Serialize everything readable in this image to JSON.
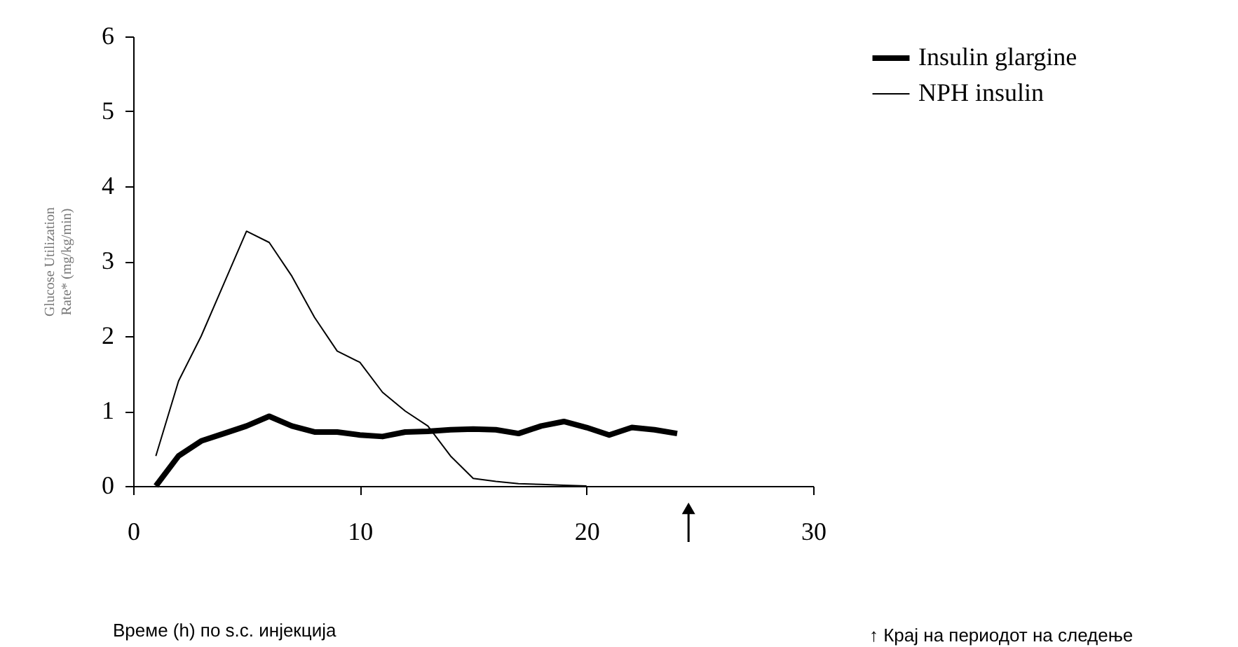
{
  "chart_data": {
    "type": "line",
    "xlabel": "Време (h) по s.c. инјекција",
    "ylabel": "Glucose Utilization\nRate* (mg/kg/min)",
    "xlim": [
      0,
      30
    ],
    "xticks": [
      0,
      10,
      20,
      30
    ],
    "ylim": [
      0,
      6
    ],
    "yticks": [
      0,
      1,
      2,
      3,
      4,
      5,
      6
    ],
    "grid": false,
    "legend": "right",
    "line_style": "solid",
    "marker": "none",
    "annotations": [
      "↑ Крај на периодот на следење"
    ],
    "series": [
      {
        "name": "Insulin glargine",
        "color": "#000000",
        "x": [
          1,
          2,
          3,
          4,
          5,
          6,
          7,
          8,
          9,
          10,
          11,
          12,
          13,
          14,
          15,
          16,
          17,
          18,
          19,
          20,
          21,
          22,
          23,
          24
        ],
        "values": [
          0,
          0.4,
          0.6,
          0.7,
          0.8,
          0.93,
          0.8,
          0.72,
          0.72,
          0.68,
          0.66,
          0.72,
          0.73,
          0.75,
          0.76,
          0.75,
          0.7,
          0.8,
          0.86,
          0.78,
          0.68,
          0.78,
          0.75,
          0.7
        ]
      },
      {
        "name": "NPH insulin",
        "color": "#000000",
        "x": [
          1,
          2,
          3,
          4,
          5,
          6,
          7,
          8,
          9,
          10,
          11,
          12,
          13,
          14,
          15,
          16,
          17,
          18,
          19,
          20
        ],
        "values": [
          0.4,
          1.4,
          2.0,
          2.7,
          3.4,
          3.25,
          2.8,
          2.25,
          1.8,
          1.65,
          1.25,
          1.0,
          0.8,
          0.4,
          0.1,
          0.06,
          0.03,
          0.02,
          0.01,
          0
        ]
      }
    ]
  }
}
